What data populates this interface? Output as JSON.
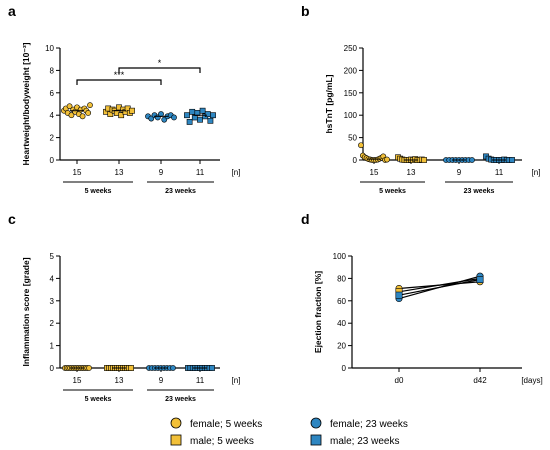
{
  "colors": {
    "yellow": "#F2C038",
    "blue": "#2E86C1",
    "stroke": "#000000"
  },
  "legend": {
    "female_5": "female; 5 weeks",
    "male_5": "male; 5 weeks",
    "female_23": "female; 23 weeks",
    "male_23": "male; 23 weeks"
  },
  "chart_data": [
    {
      "panel": "a",
      "type": "scatter",
      "ylabel": "Heartweight/bodyweight [10⁻³]",
      "ylim": [
        0,
        10
      ],
      "yticks": [
        0,
        2,
        4,
        6,
        8,
        10
      ],
      "categories": [
        "15",
        "13",
        "9",
        "11"
      ],
      "n_unit": "[n]",
      "groups": [
        "5 weeks",
        "23 weeks"
      ],
      "significance": [
        {
          "from": "15",
          "to": "9",
          "label": "***"
        },
        {
          "from": "13",
          "to": "11",
          "label": "*"
        }
      ],
      "series": [
        {
          "sex": "female",
          "age": "5 weeks",
          "marker": "circle",
          "color": "yellow",
          "values": [
            4.4,
            4.6,
            4.2,
            4.8,
            4.0,
            4.5,
            4.3,
            4.7,
            4.1,
            4.5,
            3.9,
            4.6,
            4.4,
            4.2,
            4.9
          ]
        },
        {
          "sex": "male",
          "age": "5 weeks",
          "marker": "square",
          "color": "yellow",
          "values": [
            4.3,
            4.6,
            4.1,
            4.5,
            4.4,
            4.2,
            4.7,
            4.0,
            4.5,
            4.3,
            4.6,
            4.2,
            4.4
          ]
        },
        {
          "sex": "female",
          "age": "23 weeks",
          "marker": "circle",
          "color": "blue",
          "values": [
            3.9,
            3.7,
            4.0,
            3.8,
            4.1,
            3.6,
            3.9,
            4.0,
            3.8
          ]
        },
        {
          "sex": "male",
          "age": "23 weeks",
          "marker": "square",
          "color": "blue",
          "values": [
            4.0,
            3.4,
            4.3,
            3.8,
            4.2,
            3.6,
            4.4,
            3.9,
            4.1,
            3.5,
            4.0
          ]
        }
      ]
    },
    {
      "panel": "b",
      "type": "scatter",
      "ylabel": "hsTnT [pg/mL]",
      "ylim": [
        0,
        250
      ],
      "yticks": [
        0,
        50,
        100,
        150,
        200,
        250
      ],
      "categories": [
        "15",
        "13",
        "9",
        "11"
      ],
      "n_unit": "[n]",
      "groups": [
        "5 weeks",
        "23 weeks"
      ],
      "series": [
        {
          "sex": "female",
          "age": "5 weeks",
          "marker": "circle",
          "color": "yellow",
          "values": [
            33,
            10,
            6,
            4,
            2,
            1,
            0,
            0,
            0,
            1,
            3,
            5,
            8,
            0,
            1
          ]
        },
        {
          "sex": "male",
          "age": "5 weeks",
          "marker": "square",
          "color": "yellow",
          "values": [
            6,
            3,
            1,
            0,
            0,
            0,
            1,
            0,
            2,
            0,
            0,
            1,
            0
          ]
        },
        {
          "sex": "female",
          "age": "23 weeks",
          "marker": "circle",
          "color": "blue",
          "values": [
            0,
            0,
            0,
            0,
            0,
            0,
            0,
            0,
            0
          ]
        },
        {
          "sex": "male",
          "age": "23 weeks",
          "marker": "square",
          "color": "blue",
          "values": [
            8,
            3,
            1,
            0,
            0,
            0,
            0,
            1,
            0,
            0,
            0
          ]
        }
      ]
    },
    {
      "panel": "c",
      "type": "scatter",
      "ylabel": "Inflammation score [grade]",
      "ylim": [
        0,
        5
      ],
      "yticks": [
        0,
        1,
        2,
        3,
        4,
        5
      ],
      "categories": [
        "15",
        "13",
        "9",
        "11"
      ],
      "n_unit": "[n]",
      "groups": [
        "5 weeks",
        "23 weeks"
      ],
      "series": [
        {
          "sex": "female",
          "age": "5 weeks",
          "marker": "circle",
          "color": "yellow",
          "values": [
            0,
            0,
            0,
            0,
            0,
            0,
            0,
            0,
            0,
            0,
            0,
            0,
            0,
            0,
            0
          ]
        },
        {
          "sex": "male",
          "age": "5 weeks",
          "marker": "square",
          "color": "yellow",
          "values": [
            0,
            0,
            0,
            0,
            0,
            0,
            0,
            0,
            0,
            0,
            0,
            0,
            0
          ]
        },
        {
          "sex": "female",
          "age": "23 weeks",
          "marker": "circle",
          "color": "blue",
          "values": [
            0,
            0,
            0,
            0,
            0,
            0,
            0,
            0,
            0
          ]
        },
        {
          "sex": "male",
          "age": "23 weeks",
          "marker": "square",
          "color": "blue",
          "values": [
            0,
            0,
            0,
            0,
            0,
            0,
            0,
            0,
            0,
            0,
            0
          ]
        }
      ]
    },
    {
      "panel": "d",
      "type": "line",
      "ylabel": "Ejection fraction [%]",
      "ylim": [
        0,
        100
      ],
      "yticks": [
        0,
        20,
        40,
        60,
        80,
        100
      ],
      "categories": [
        "d0",
        "d42"
      ],
      "x_unit": "[days]",
      "series": [
        {
          "marker": "circle",
          "color": "yellow",
          "values": [
            71,
            77
          ]
        },
        {
          "marker": "square",
          "color": "yellow",
          "values": [
            68,
            80
          ]
        },
        {
          "marker": "circle",
          "color": "blue",
          "values": [
            62,
            82
          ]
        },
        {
          "marker": "square",
          "color": "blue",
          "values": [
            65,
            79
          ]
        }
      ]
    }
  ]
}
